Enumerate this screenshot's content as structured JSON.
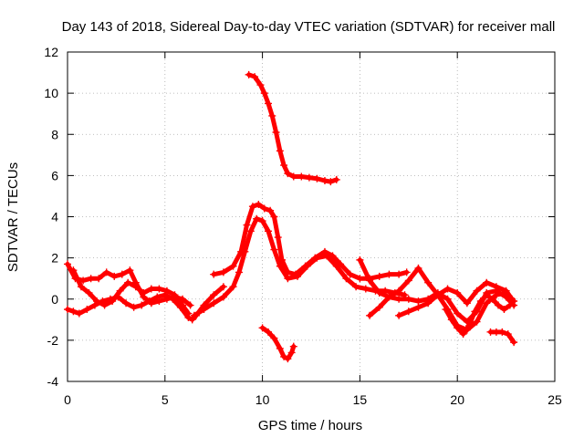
{
  "chart_data": {
    "type": "scatter",
    "title": "Day 143 of 2018, Sidereal Day-to-day VTEC variation (SDTVAR) for receiver mall",
    "xlabel": "GPS time / hours",
    "ylabel": "SDTVAR / TECUs",
    "xlim": [
      0,
      25
    ],
    "ylim": [
      -4,
      12
    ],
    "xticks": [
      0,
      5,
      10,
      15,
      20,
      25
    ],
    "yticks": [
      -4,
      -2,
      0,
      2,
      4,
      6,
      8,
      10,
      12
    ],
    "grid": true,
    "legend": "none",
    "marker": "+",
    "color": "#ff0000",
    "series": [
      {
        "name": "track-high-decay",
        "x": [
          9.3,
          9.6,
          9.9,
          10.1,
          10.3,
          10.5,
          10.7,
          10.9,
          11.1,
          11.3,
          11.6,
          12.0,
          12.4,
          12.8,
          13.2,
          13.5,
          13.8
        ],
        "y": [
          10.9,
          10.8,
          10.4,
          10.0,
          9.5,
          8.9,
          8.1,
          7.2,
          6.5,
          6.1,
          5.95,
          5.95,
          5.9,
          5.85,
          5.75,
          5.7,
          5.8
        ]
      },
      {
        "name": "track-peak-upper",
        "x": [
          7.5,
          8.0,
          8.5,
          8.9,
          9.2,
          9.5,
          9.8,
          10.1,
          10.4,
          10.6,
          10.8,
          11.0,
          11.3,
          11.7,
          12.2,
          12.7,
          13.2,
          13.6,
          14.0,
          14.5,
          15.0,
          15.5,
          16.0,
          16.5,
          17.0,
          17.4
        ],
        "y": [
          1.2,
          1.3,
          1.6,
          2.3,
          3.6,
          4.5,
          4.6,
          4.4,
          4.3,
          4.0,
          3.0,
          1.9,
          1.3,
          1.2,
          1.6,
          2.0,
          2.3,
          2.1,
          1.7,
          1.2,
          1.0,
          1.0,
          1.1,
          1.2,
          1.2,
          1.3
        ]
      },
      {
        "name": "track-peak-lower",
        "x": [
          6.5,
          7.0,
          7.5,
          8.0,
          8.5,
          8.8,
          9.1,
          9.4,
          9.7,
          10.0,
          10.3,
          10.6,
          10.9,
          11.3,
          11.8,
          12.3,
          12.8,
          13.3,
          13.8,
          14.3,
          14.8,
          15.3,
          15.8,
          16.3,
          16.8,
          17.3
        ],
        "y": [
          -0.8,
          -0.5,
          -0.2,
          0.1,
          0.6,
          1.3,
          2.3,
          3.3,
          3.9,
          3.8,
          3.3,
          2.4,
          1.6,
          1.0,
          1.1,
          1.6,
          2.0,
          2.1,
          1.6,
          1.0,
          0.6,
          0.5,
          0.4,
          0.4,
          0.3,
          0.2
        ]
      },
      {
        "name": "track-dip",
        "x": [
          10.0,
          10.3,
          10.6,
          10.9,
          11.1,
          11.3,
          11.5,
          11.6
        ],
        "y": [
          -1.4,
          -1.6,
          -1.9,
          -2.4,
          -2.8,
          -2.9,
          -2.6,
          -2.3
        ]
      },
      {
        "name": "track-early-a",
        "x": [
          0.0,
          0.3,
          0.6,
          1.0,
          1.4,
          1.8,
          2.2,
          2.6,
          3.0,
          3.4,
          3.8,
          4.2,
          4.6,
          5.0,
          5.4,
          5.8,
          6.2,
          6.4,
          6.6,
          7.0,
          7.5,
          8.0
        ],
        "y": [
          -0.5,
          -0.6,
          -0.7,
          -0.5,
          -0.3,
          -0.1,
          0.0,
          0.1,
          -0.2,
          -0.4,
          -0.3,
          -0.1,
          0.1,
          0.2,
          0.0,
          -0.4,
          -0.9,
          -1.0,
          -0.8,
          -0.3,
          0.2,
          0.6
        ]
      },
      {
        "name": "track-early-b",
        "x": [
          0.0,
          0.4,
          0.8,
          1.2,
          1.6,
          2.0,
          2.4,
          2.8,
          3.2,
          3.5,
          3.9,
          4.3,
          4.7,
          5.1,
          5.5,
          5.9,
          6.3
        ],
        "y": [
          1.7,
          1.0,
          0.9,
          1.0,
          1.0,
          1.3,
          1.1,
          1.2,
          1.4,
          0.8,
          0.1,
          -0.2,
          -0.1,
          0.0,
          0.1,
          0.0,
          -0.3
        ]
      },
      {
        "name": "track-early-c",
        "x": [
          0.3,
          0.7,
          1.1,
          1.5,
          1.9,
          2.3,
          2.7,
          3.1,
          3.5,
          3.9,
          4.3,
          4.7,
          5.1,
          5.5,
          5.9,
          6.2
        ],
        "y": [
          1.4,
          0.6,
          0.3,
          -0.1,
          -0.3,
          -0.1,
          0.4,
          0.8,
          0.6,
          0.3,
          0.5,
          0.5,
          0.4,
          0.2,
          -0.3,
          -0.7
        ]
      },
      {
        "name": "track-late-a",
        "x": [
          15.0,
          15.5,
          16.0,
          16.5,
          17.0,
          17.5,
          18.0,
          18.5,
          19.0,
          19.5,
          20.0,
          20.5,
          21.0,
          21.5,
          22.0,
          22.5,
          22.9
        ],
        "y": [
          1.9,
          0.9,
          0.3,
          0.1,
          0.0,
          0.0,
          -0.1,
          0.0,
          0.3,
          0.0,
          -0.7,
          -1.1,
          -0.6,
          0.3,
          0.4,
          0.1,
          -0.3
        ]
      },
      {
        "name": "track-late-b",
        "x": [
          15.5,
          16.0,
          16.5,
          17.0,
          17.5,
          18.0,
          18.5,
          19.0,
          19.5,
          20.0,
          20.5,
          21.0,
          21.5,
          22.0,
          22.5,
          22.9
        ],
        "y": [
          -0.8,
          -0.4,
          0.1,
          0.4,
          0.9,
          1.5,
          0.8,
          0.2,
          -0.5,
          -1.3,
          -1.5,
          -1.1,
          -0.2,
          0.2,
          0.3,
          -0.1
        ]
      },
      {
        "name": "track-late-c",
        "x": [
          17.0,
          17.5,
          18.0,
          18.5,
          19.0,
          19.5,
          20.0,
          20.5,
          21.0,
          21.5,
          22.0,
          22.5,
          22.8
        ],
        "y": [
          -0.8,
          -0.6,
          -0.4,
          -0.2,
          0.2,
          0.5,
          0.3,
          -0.2,
          0.4,
          0.8,
          0.6,
          0.4,
          0.0
        ]
      },
      {
        "name": "track-late-d",
        "x": [
          19.4,
          19.7,
          20.0,
          20.3,
          20.6,
          20.9,
          21.2,
          21.5,
          21.8,
          22.1,
          22.4,
          22.7
        ],
        "y": [
          -0.5,
          -1.0,
          -1.4,
          -1.7,
          -1.3,
          -0.6,
          -0.1,
          0.2,
          0.0,
          -0.3,
          -0.5,
          -0.3
        ]
      },
      {
        "name": "track-late-e",
        "x": [
          21.7,
          22.0,
          22.3,
          22.6,
          22.9
        ],
        "y": [
          -1.6,
          -1.6,
          -1.6,
          -1.7,
          -2.1
        ]
      }
    ]
  }
}
